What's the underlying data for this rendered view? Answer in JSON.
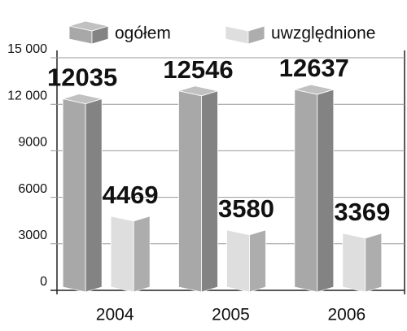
{
  "chart_data": {
    "type": "bar3d",
    "categories": [
      "2004",
      "2005",
      "2006"
    ],
    "series": [
      {
        "name": "ogółem",
        "color": "#a8a8a8",
        "values": [
          12035,
          12546,
          12637
        ]
      },
      {
        "name": "uwzględnione",
        "color": "#dedede",
        "values": [
          4469,
          3580,
          3369
        ]
      }
    ],
    "ylim": [
      0,
      15000
    ],
    "yticks": [
      0,
      3000,
      6000,
      9000,
      {
        "value": 12000,
        "label": "12 000"
      },
      {
        "value": 15000,
        "label": "15 000"
      }
    ],
    "grid": true
  }
}
